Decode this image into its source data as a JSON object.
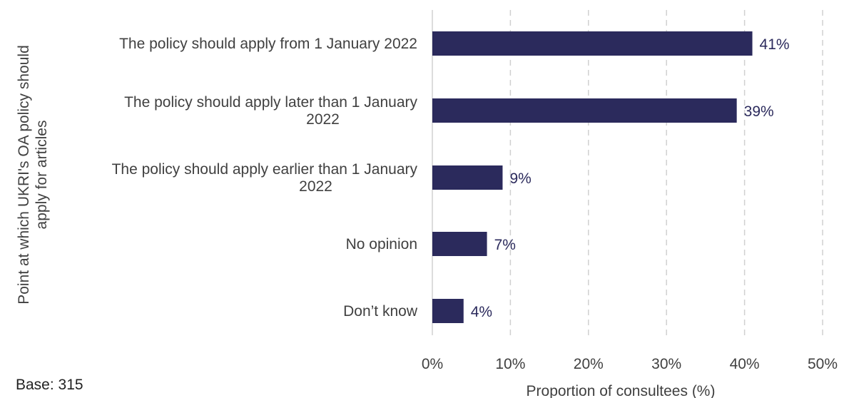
{
  "chart_data": {
    "type": "bar",
    "orientation": "horizontal",
    "categories": [
      [
        "The policy should apply from 1 January 2022"
      ],
      [
        "The policy should apply later than 1 January",
        "2022"
      ],
      [
        "The policy should apply earlier than 1 January",
        "2022"
      ],
      [
        "No opinion"
      ],
      [
        "Don’t know"
      ]
    ],
    "values": [
      41,
      39,
      9,
      7,
      4
    ],
    "value_labels": [
      "41%",
      "39%",
      "9%",
      "7%",
      "4%"
    ],
    "xlim": [
      0,
      50
    ],
    "x_ticks": [
      0,
      10,
      20,
      30,
      40,
      50
    ],
    "x_tick_labels": [
      "0%",
      "10%",
      "20%",
      "30%",
      "40%",
      "50%"
    ],
    "xlabel": "Proportion of consultees (%)",
    "ylabel": [
      "Point at which UKRI's OA policy should",
      "apply for articles"
    ],
    "grid": "vertical dashed",
    "bar_color": "#2b2a5c",
    "grid_color": "#d0d0d0",
    "text_color": "#404040"
  },
  "note": "Base: 315"
}
